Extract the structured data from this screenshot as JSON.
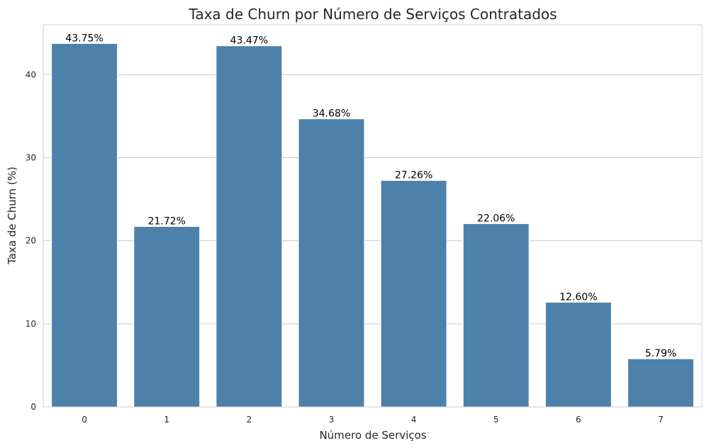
{
  "chart_data": {
    "type": "bar",
    "title": "Taxa de Churn por Número de Serviços Contratados",
    "xlabel": "Número de Serviços",
    "ylabel": "Taxa de Churn (%)",
    "categories": [
      "0",
      "1",
      "2",
      "3",
      "4",
      "5",
      "6",
      "7"
    ],
    "values": [
      43.75,
      21.72,
      43.47,
      34.68,
      27.26,
      22.06,
      12.6,
      5.79
    ],
    "value_labels": [
      "43.75%",
      "21.72%",
      "43.47%",
      "34.68%",
      "27.26%",
      "22.06%",
      "12.60%",
      "5.79%"
    ],
    "ylim": [
      0,
      46
    ],
    "yticks": [
      0,
      10,
      20,
      30,
      40
    ],
    "grid": true,
    "bar_color": "#4e81aa"
  }
}
